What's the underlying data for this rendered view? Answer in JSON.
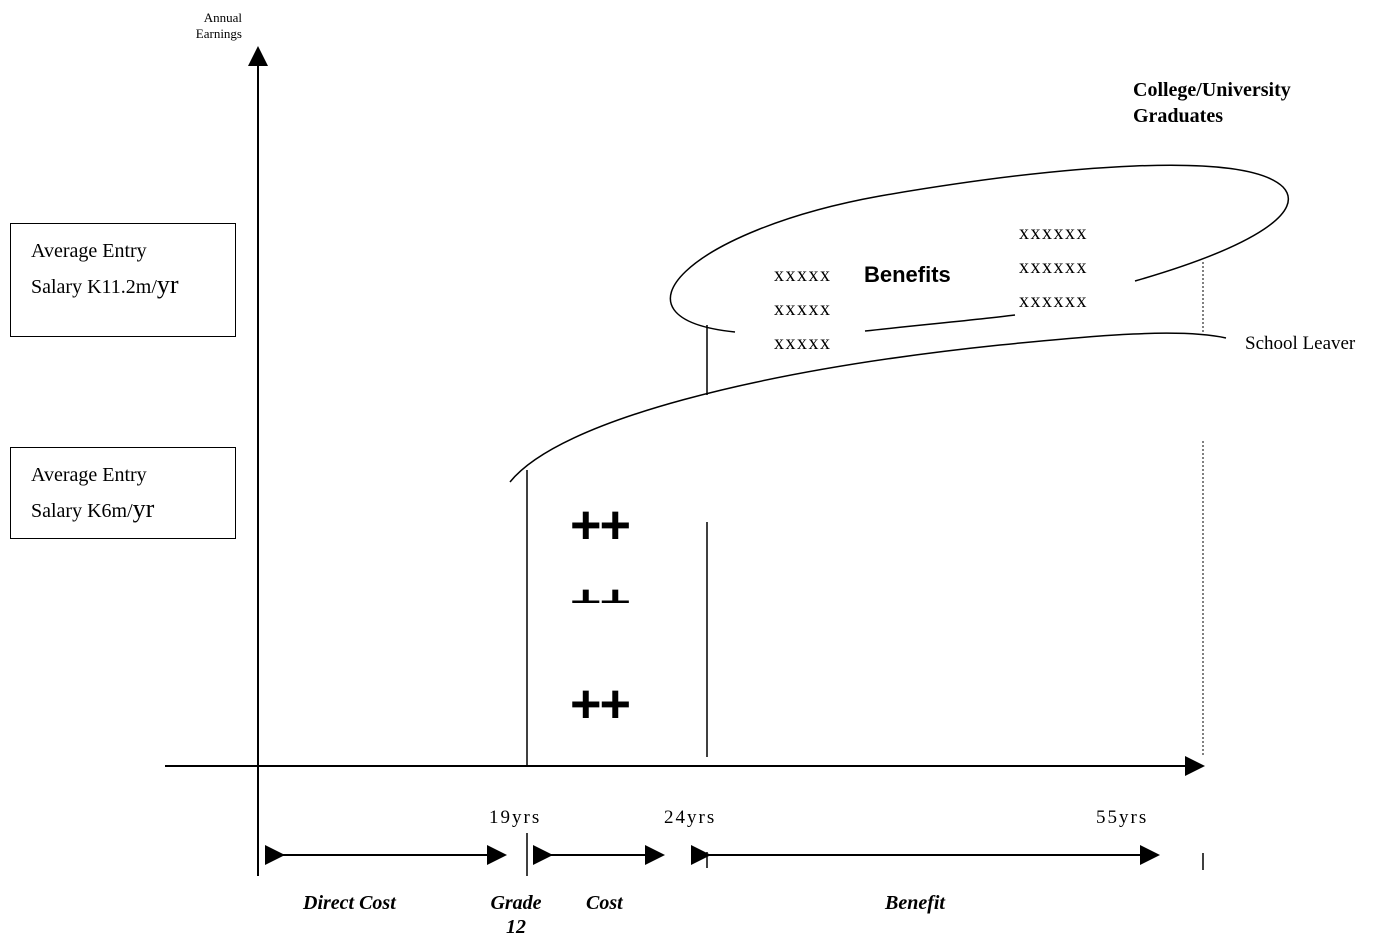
{
  "y_axis_label": [
    "Annual",
    "Earnings"
  ],
  "salary_boxes": [
    {
      "line1": "Average Entry",
      "line2_prefix": "Salary K11.2m/",
      "line2_unit": "yr"
    },
    {
      "line1": "Average Entry",
      "line2_prefix": "Salary K6m/",
      "line2_unit": "yr"
    }
  ],
  "graduates_label": [
    "College/University",
    "Graduates"
  ],
  "school_leaver_label": "School Leaver",
  "benefits_label": "Benefits",
  "x_marks_left": [
    "xxxxx",
    "xxxxx",
    "xxxxx"
  ],
  "x_marks_right": [
    "xxxxxx",
    "xxxxxx",
    "xxxxxx"
  ],
  "plus_marks": [
    "++",
    "++",
    "++"
  ],
  "age_labels": [
    "19yrs",
    "24yrs",
    "55yrs"
  ],
  "segments": {
    "direct_cost": "Direct Cost",
    "grade": [
      "Grade",
      "12"
    ],
    "cost": "Cost",
    "benefit": "Benefit"
  }
}
